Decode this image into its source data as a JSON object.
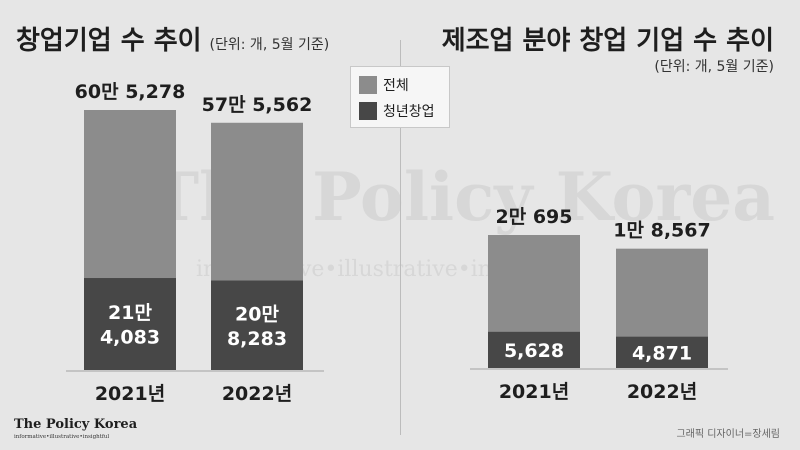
{
  "colors": {
    "background": "#e6e6e6",
    "total": "#8c8c8c",
    "youth": "#474747"
  },
  "legend": {
    "items": [
      "전체",
      "청년창업"
    ]
  },
  "brand": {
    "name": "The Policy Korea",
    "tagline": "informative•illustrative•insightful"
  },
  "watermark": {
    "name": "The Policy Korea",
    "tagline": "informative•illustrative•insightful"
  },
  "credit": "그래픽 디자이너=장세림",
  "chart_data": [
    {
      "type": "bar",
      "title": "창업기업 수 추이",
      "unit_note": "(단위: 개, 5월 기준)",
      "categories": [
        "2021년",
        "2022년"
      ],
      "series": [
        {
          "name": "전체",
          "values": [
            605278,
            575562
          ],
          "labels": [
            "60만 5,278",
            "57만 5,562"
          ]
        },
        {
          "name": "청년창업",
          "values": [
            214083,
            208283
          ],
          "labels": [
            "21만\n4,083",
            "20만\n8,283"
          ]
        }
      ],
      "ylim": [
        0,
        605278
      ],
      "grid": false,
      "legend_position": "top-right"
    },
    {
      "type": "bar",
      "title": "제조업 분야 창업 기업 수 추이",
      "unit_note": "(단위: 개, 5월 기준)",
      "categories": [
        "2021년",
        "2022년"
      ],
      "series": [
        {
          "name": "전체",
          "values": [
            20695,
            18567
          ],
          "labels": [
            "2만 695",
            "1만 8,567"
          ]
        },
        {
          "name": "청년창업",
          "values": [
            5628,
            4871
          ],
          "labels": [
            "5,628",
            "4,871"
          ]
        }
      ],
      "ylim": [
        0,
        20695
      ],
      "grid": false
    }
  ]
}
